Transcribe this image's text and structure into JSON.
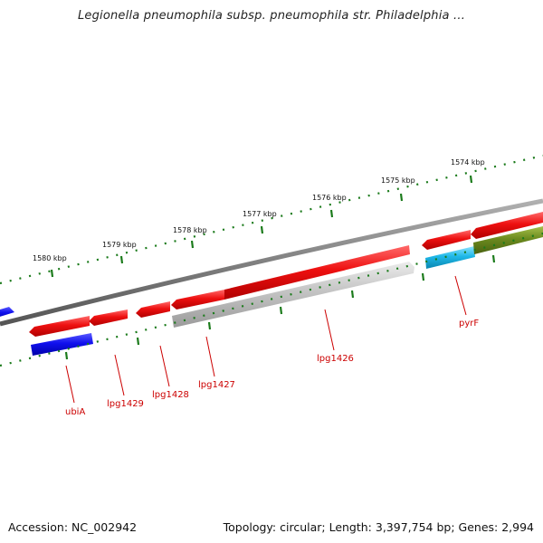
{
  "title": "Legionella pneumophila subsp. pneumophila str. Philadelphia ...",
  "footer": {
    "accession": "Accession: NC_002942",
    "topology": "Topology: circular; Length: 3,397,754 bp; Genes: 2,994"
  },
  "scale_labels": [
    "1580 kbp",
    "1579 kbp",
    "1578 kbp",
    "1577 kbp",
    "1576 kbp",
    "1575 kbp",
    "1574 kbp"
  ],
  "gene_labels": [
    "ubiA",
    "lpg1429",
    "lpg1428",
    "lpg1427",
    "lpg1426",
    "pyrF"
  ],
  "colors": {
    "forward_gene": "#e00000",
    "reverse_gene_blue": "#0000e0",
    "reverse_gene_gray": "#bdbdbd",
    "reverse_gene_cyan": "#1fb8e8",
    "reverse_gene_olive": "#6b8a1e",
    "backbone": "#808080",
    "scale_ticks": "#1a7a1a",
    "label_text": "#cc0000"
  }
}
